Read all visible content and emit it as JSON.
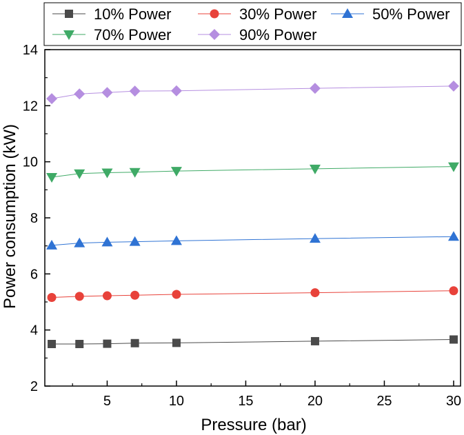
{
  "chart_data": {
    "type": "line",
    "title": "",
    "xlabel": "Pressure (bar)",
    "ylabel": "Power consumption (kW)",
    "xlim": [
      0.5,
      30.5
    ],
    "ylim": [
      2,
      14
    ],
    "xticks": [
      5,
      10,
      15,
      20,
      25,
      30
    ],
    "yticks": [
      2,
      4,
      6,
      8,
      10,
      12,
      14
    ],
    "legend_position": "top",
    "x": [
      1,
      3,
      5,
      7,
      10,
      20,
      30
    ],
    "series": [
      {
        "name": "10% Power",
        "marker": "square",
        "color": "#4a4a4a",
        "values": [
          3.5,
          3.5,
          3.51,
          3.53,
          3.54,
          3.6,
          3.66
        ]
      },
      {
        "name": "30% Power",
        "marker": "circle",
        "color": "#e8423a",
        "values": [
          5.16,
          5.2,
          5.22,
          5.24,
          5.27,
          5.33,
          5.4
        ]
      },
      {
        "name": "50% Power",
        "marker": "triangle-up",
        "color": "#2f73d4",
        "values": [
          7.02,
          7.1,
          7.13,
          7.15,
          7.18,
          7.26,
          7.33
        ]
      },
      {
        "name": "70% Power",
        "marker": "triangle-down",
        "color": "#3faa66",
        "values": [
          9.45,
          9.58,
          9.61,
          9.63,
          9.67,
          9.75,
          9.83
        ]
      },
      {
        "name": "90% Power",
        "marker": "diamond",
        "color": "#b58ee0",
        "values": [
          12.25,
          12.42,
          12.47,
          12.52,
          12.53,
          12.62,
          12.7
        ]
      }
    ]
  }
}
